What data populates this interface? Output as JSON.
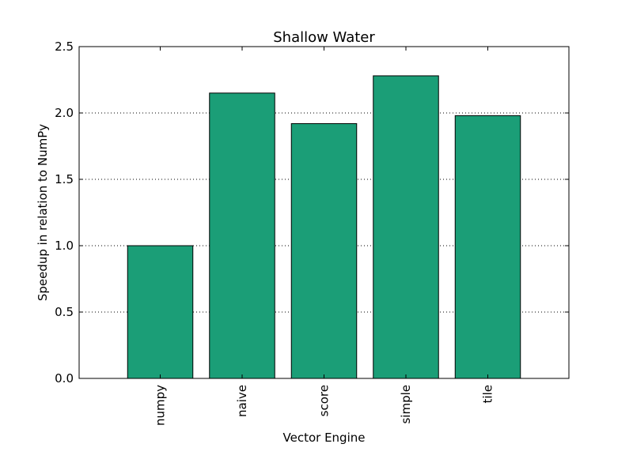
{
  "chart_data": {
    "type": "bar",
    "title": "Shallow Water",
    "xlabel": "Vector Engine",
    "ylabel": "Speedup in relation to NumPy",
    "categories": [
      "numpy",
      "naive",
      "score",
      "simple",
      "tile"
    ],
    "values": [
      1.0,
      2.15,
      1.92,
      2.28,
      1.98
    ],
    "ylim": [
      0,
      2.5
    ],
    "yticks": [
      "0.0",
      "0.5",
      "1.0",
      "1.5",
      "2.0",
      "2.5"
    ],
    "grid": "horizontal-dotted",
    "bar_color": "#1b9e77",
    "bar_edge_color": "#000000"
  }
}
